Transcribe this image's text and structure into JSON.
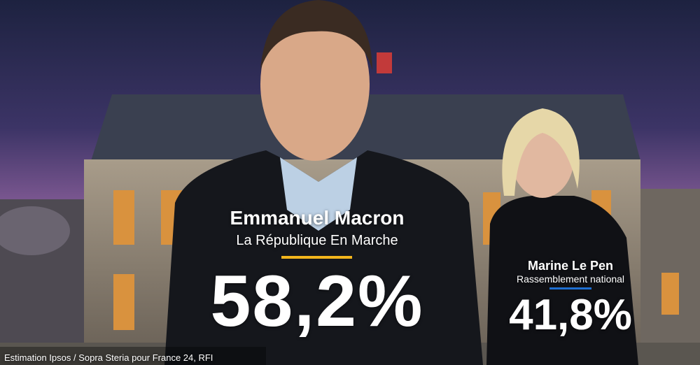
{
  "candidates": [
    {
      "name": "Emmanuel Macron",
      "party": "La République En Marche",
      "score": "58,2%"
    },
    {
      "name": "Marine Le Pen",
      "party": "Rassemblement national",
      "score": "41,8%"
    }
  ],
  "source": "Estimation Ipsos / Sopra Steria pour France 24, RFI"
}
